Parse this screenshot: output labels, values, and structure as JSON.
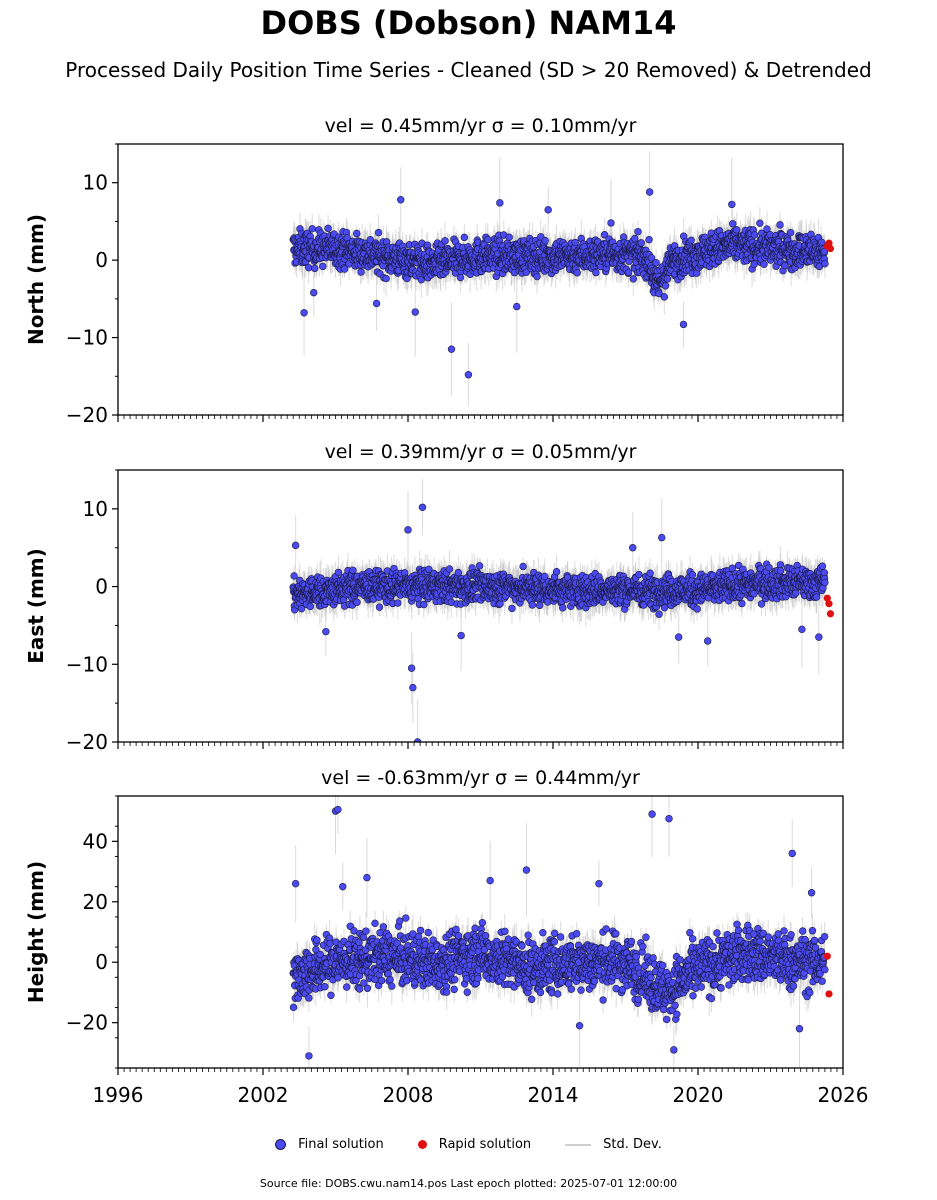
{
  "title": "DOBS (Dobson) NAM14",
  "subtitle": "Processed Daily Position Time Series - Cleaned (SD > 20 Removed) & Detrended",
  "legend": {
    "final_label": "Final solution",
    "rapid_label": "Rapid solution",
    "std_label": "Std. Dev."
  },
  "footer": "Source file: DOBS.cwu.nam14.pos  Last epoch plotted: 2025-07-01 12:00:00",
  "colors": {
    "final": "#4a4af0",
    "final_edge": "#1a1a40",
    "rapid": "#e01010",
    "std": "#bdbdbd"
  },
  "chart_data": [
    {
      "type": "scatter",
      "component": "north",
      "title": "vel = 0.45mm/yr   σ = 0.10mm/yr",
      "ylabel": "North (mm)",
      "xlim": [
        1996,
        2026
      ],
      "ylim": [
        -20,
        15
      ],
      "yticks": [
        -20,
        -10,
        0,
        10
      ],
      "xticks": [
        1996,
        2002,
        2008,
        2014,
        2020,
        2026
      ],
      "show_xticklabels": false,
      "series": [
        {
          "kind": "final",
          "x_start": 2003.25,
          "x_end": 2025.25,
          "segments": [
            [
              2003.25,
              1.5
            ],
            [
              2005,
              1.5
            ],
            [
              2007,
              0.5
            ],
            [
              2009,
              -0.5
            ],
            [
              2011,
              0.5
            ],
            [
              2014,
              0.5
            ],
            [
              2016.5,
              0.8
            ],
            [
              2017.9,
              0.3
            ],
            [
              2018.3,
              -3.5
            ],
            [
              2019,
              0
            ],
            [
              2020,
              1
            ],
            [
              2021.5,
              2
            ],
            [
              2023,
              1.5
            ],
            [
              2025.25,
              1
            ]
          ],
          "spread": 2.2,
          "outliers": [
            [
              2003.7,
              -6.8
            ],
            [
              2004.1,
              -4.2
            ],
            [
              2006.7,
              -5.6
            ],
            [
              2007.7,
              7.8
            ],
            [
              2008.3,
              -6.7
            ],
            [
              2009.8,
              -11.5
            ],
            [
              2010.5,
              -14.8
            ],
            [
              2011.8,
              7.4
            ],
            [
              2012.5,
              -6.0
            ],
            [
              2018.0,
              8.8
            ],
            [
              2019.4,
              -8.3
            ],
            [
              2016.4,
              4.8
            ],
            [
              2013.8,
              6.5
            ],
            [
              2021.4,
              7.2
            ]
          ]
        },
        {
          "kind": "rapid",
          "points": [
            [
              2025.35,
              1.8
            ],
            [
              2025.42,
              2.2
            ],
            [
              2025.48,
              1.5
            ]
          ]
        }
      ]
    },
    {
      "type": "scatter",
      "component": "east",
      "title": "vel = 0.39mm/yr   σ = 0.05mm/yr",
      "ylabel": "East (mm)",
      "xlim": [
        1996,
        2026
      ],
      "ylim": [
        -20,
        15
      ],
      "yticks": [
        -20,
        -10,
        0,
        10
      ],
      "xticks": [
        1996,
        2002,
        2008,
        2014,
        2020,
        2026
      ],
      "show_xticklabels": false,
      "series": [
        {
          "kind": "final",
          "x_start": 2003.25,
          "x_end": 2025.25,
          "segments": [
            [
              2003.25,
              -1.0
            ],
            [
              2006,
              0
            ],
            [
              2009,
              0
            ],
            [
              2012,
              0
            ],
            [
              2015,
              -0.5
            ],
            [
              2018,
              -0.5
            ],
            [
              2020,
              -0.5
            ],
            [
              2022.5,
              0.5
            ],
            [
              2025.25,
              0.5
            ]
          ],
          "spread": 2.0,
          "outliers": [
            [
              2003.35,
              5.3
            ],
            [
              2004.6,
              -5.8
            ],
            [
              2008.0,
              7.3
            ],
            [
              2008.15,
              -10.5
            ],
            [
              2008.2,
              -13.0
            ],
            [
              2008.6,
              10.2
            ],
            [
              2008.4,
              -20.0
            ],
            [
              2010.2,
              -6.3
            ],
            [
              2018.5,
              6.3
            ],
            [
              2019.2,
              -6.5
            ],
            [
              2020.4,
              -7.0
            ],
            [
              2024.3,
              -5.5
            ],
            [
              2025.0,
              -6.5
            ],
            [
              2017.3,
              5.0
            ]
          ]
        },
        {
          "kind": "rapid",
          "points": [
            [
              2025.35,
              -1.5
            ],
            [
              2025.42,
              -2.2
            ],
            [
              2025.48,
              -3.5
            ]
          ]
        }
      ]
    },
    {
      "type": "scatter",
      "component": "height",
      "title": "vel = -0.63mm/yr   σ = 0.44mm/yr",
      "ylabel": "Height (mm)",
      "xlim": [
        1996,
        2026
      ],
      "ylim": [
        -35,
        55
      ],
      "yticks": [
        -20,
        0,
        20,
        40
      ],
      "xticks": [
        1996,
        2002,
        2008,
        2014,
        2020,
        2026
      ],
      "show_xticklabels": true,
      "series": [
        {
          "kind": "final",
          "x_start": 2003.25,
          "x_end": 2025.25,
          "segments": [
            [
              2003.25,
              -5
            ],
            [
              2005,
              0
            ],
            [
              2007,
              2
            ],
            [
              2009,
              0
            ],
            [
              2011,
              3
            ],
            [
              2013,
              -2
            ],
            [
              2015,
              0
            ],
            [
              2017,
              0
            ],
            [
              2018.7,
              -10
            ],
            [
              2020,
              -2
            ],
            [
              2022,
              3
            ],
            [
              2024,
              0
            ],
            [
              2025.25,
              0
            ]
          ],
          "spread": 9,
          "outliers": [
            [
              2003.35,
              26
            ],
            [
              2003.9,
              -31
            ],
            [
              2005.0,
              50
            ],
            [
              2005.1,
              50.5
            ],
            [
              2005.3,
              25
            ],
            [
              2006.3,
              28
            ],
            [
              2011.4,
              27
            ],
            [
              2012.9,
              30.5
            ],
            [
              2015.1,
              -21
            ],
            [
              2015.9,
              26
            ],
            [
              2018.1,
              49
            ],
            [
              2018.8,
              47.5
            ],
            [
              2019.0,
              -29
            ],
            [
              2023.9,
              36
            ],
            [
              2024.2,
              -22
            ],
            [
              2024.7,
              23
            ]
          ]
        },
        {
          "kind": "rapid",
          "points": [
            [
              2025.35,
              2
            ],
            [
              2025.42,
              -10.5
            ]
          ]
        }
      ]
    }
  ]
}
